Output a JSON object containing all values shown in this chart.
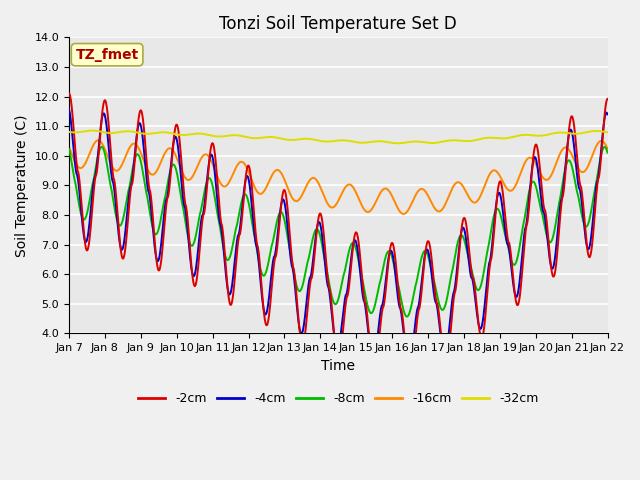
{
  "title": "Tonzi Soil Temperature Set D",
  "xlabel": "Time",
  "ylabel": "Soil Temperature (C)",
  "ylim": [
    4.0,
    14.0
  ],
  "yticks": [
    4.0,
    5.0,
    6.0,
    7.0,
    8.0,
    9.0,
    10.0,
    11.0,
    12.0,
    13.0,
    14.0
  ],
  "xtick_labels": [
    "Jan 7",
    "Jan 8",
    "Jan 9",
    "Jan 10",
    "Jan 11",
    "Jan 12",
    "Jan 13",
    "Jan 14",
    "Jan 15",
    "Jan 16",
    "Jan 17",
    "Jan 18",
    "Jan 19",
    "Jan 20",
    "Jan 21",
    "Jan 22"
  ],
  "legend_entries": [
    "-2cm",
    "-4cm",
    "-8cm",
    "-16cm",
    "-32cm"
  ],
  "line_colors": [
    "#dd0000",
    "#0000cc",
    "#00bb00",
    "#ff8800",
    "#dddd00"
  ],
  "annotation_text": "TZ_fmet",
  "annotation_color": "#aa0000",
  "annotation_bg": "#ffffcc",
  "annotation_border": "#aaaa44",
  "fig_bg": "#f0f0f0",
  "plot_bg": "#e8e8e8",
  "title_fontsize": 12,
  "axis_fontsize": 10,
  "tick_fontsize": 8,
  "legend_fontsize": 9
}
